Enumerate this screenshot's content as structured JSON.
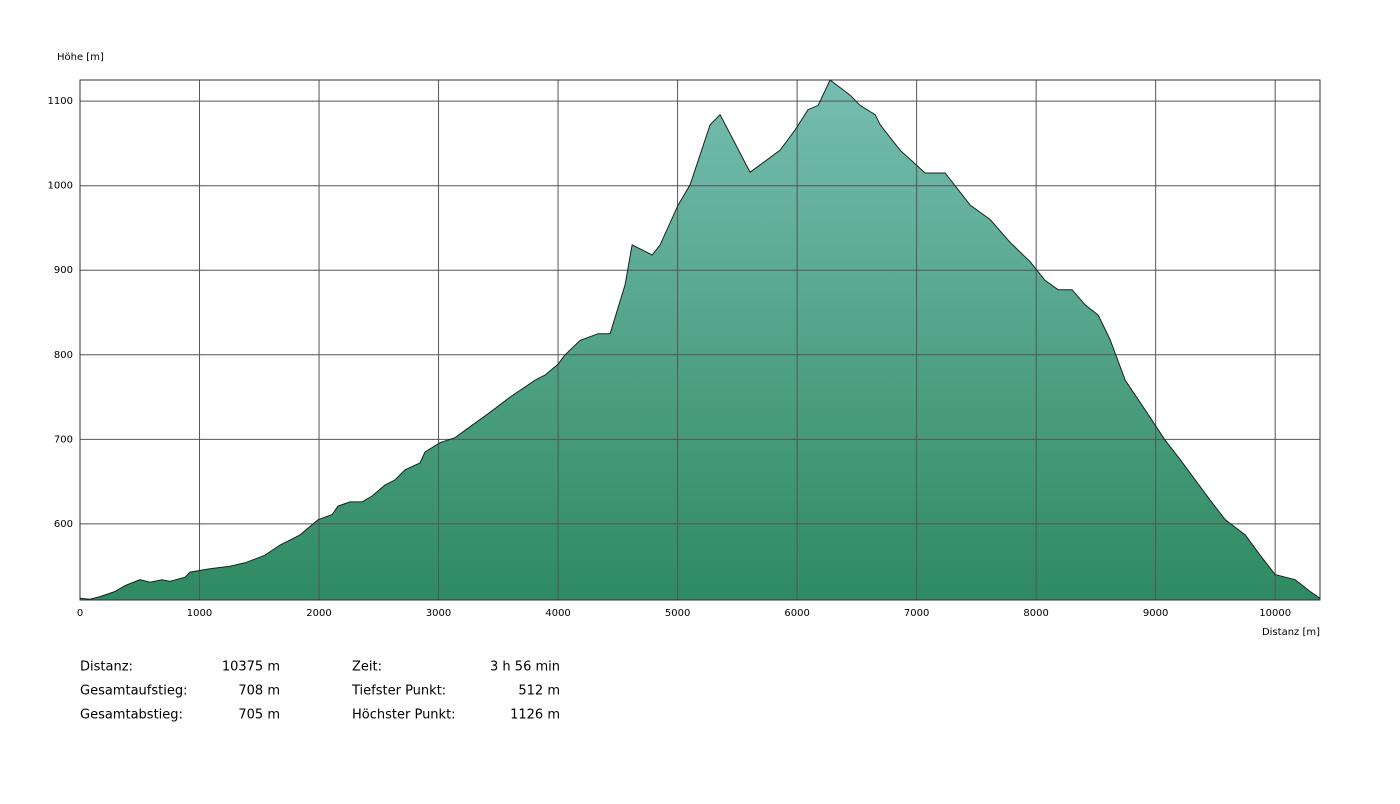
{
  "chart_data": {
    "type": "area",
    "y_label": "Höhe [m]",
    "x_label": "Distanz [m]",
    "x": [
      0,
      84,
      167,
      293,
      377,
      502,
      586,
      686,
      753,
      879,
      921,
      1088,
      1255,
      1381,
      1548,
      1674,
      1841,
      1992,
      2109,
      2159,
      2259,
      2360,
      2444,
      2552,
      2636,
      2720,
      2845,
      2887,
      3013,
      3138,
      3264,
      3431,
      3598,
      3808,
      3891,
      4000,
      4059,
      4184,
      4335,
      4435,
      4561,
      4619,
      4787,
      4854,
      5004,
      5105,
      5272,
      5356,
      5607,
      5858,
      5983,
      6092,
      6176,
      6276,
      6444,
      6527,
      6653,
      6695,
      6862,
      7071,
      7238,
      7448,
      7615,
      7782,
      7950,
      8075,
      8184,
      8301,
      8410,
      8519,
      8619,
      8745,
      8912,
      9079,
      9205,
      9331,
      9456,
      9582,
      9749,
      9874,
      10000,
      10167,
      10293,
      10375
    ],
    "series": [
      {
        "name": "Höhe",
        "color": "#1f1f1f",
        "gradient": [
          "#76bdb1",
          "#2e8a60"
        ],
        "values": [
          512,
          511,
          514,
          520,
          527,
          534,
          531,
          534,
          532,
          537,
          543,
          547,
          550,
          554,
          563,
          575,
          587,
          605,
          611,
          621,
          626,
          626,
          633,
          646,
          652,
          664,
          672,
          685,
          696,
          702,
          715,
          732,
          750,
          770,
          776,
          789,
          800,
          817,
          825,
          825,
          883,
          930,
          918,
          930,
          977,
          1001,
          1072,
          1084,
          1016,
          1042,
          1066,
          1090,
          1095,
          1125,
          1107,
          1095,
          1084,
          1072,
          1042,
          1015,
          1015,
          977,
          960,
          933,
          910,
          888,
          877,
          877,
          859,
          847,
          818,
          770,
          735,
          699,
          676,
          652,
          628,
          605,
          587,
          563,
          540,
          534,
          520,
          512
        ]
      }
    ],
    "xlim": [
      0,
      10375
    ],
    "ylim": [
      510,
      1125
    ],
    "xticks": [
      0,
      1000,
      2000,
      3000,
      4000,
      5000,
      6000,
      7000,
      8000,
      9000,
      10000
    ],
    "yticks": [
      600,
      700,
      800,
      900,
      1000,
      1100
    ],
    "grid": true
  },
  "stats": [
    {
      "label": "Distanz:",
      "value": "10375 m"
    },
    {
      "label": "Gesamtaufstieg:",
      "value": "708 m"
    },
    {
      "label": "Gesamtabstieg:",
      "value": "705 m"
    },
    {
      "label": "Zeit:",
      "value": "3 h 56 min"
    },
    {
      "label": "Tiefster Punkt:",
      "value": "512 m"
    },
    {
      "label": "Höchster Punkt:",
      "value": "1126 m"
    }
  ]
}
